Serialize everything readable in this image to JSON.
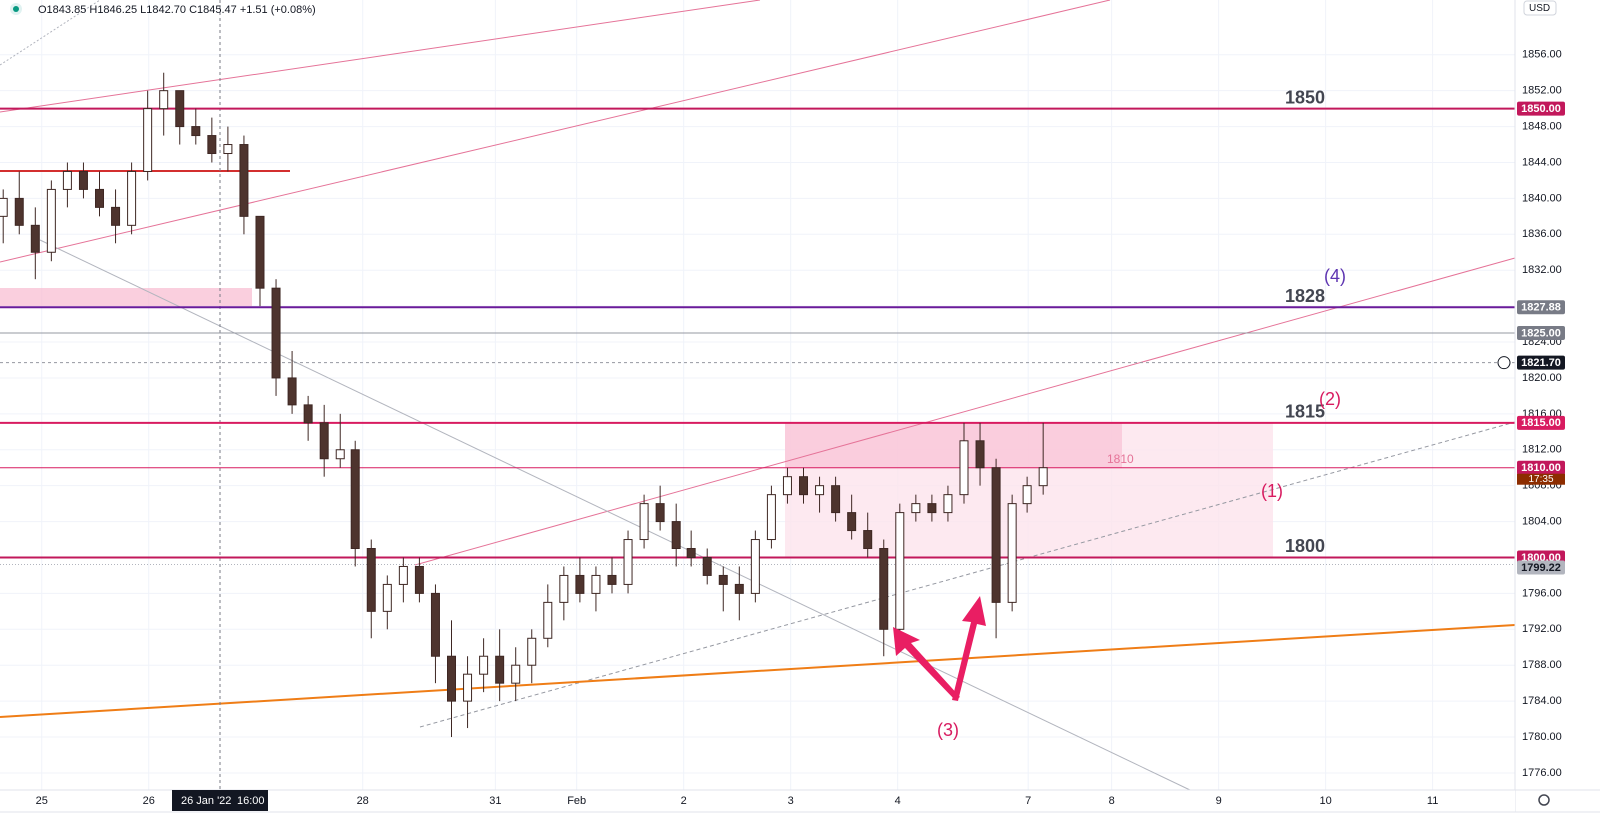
{
  "chart_data": {
    "type": "candlestick",
    "header": "O1843.85 H1846.25 L1842.70 C1845.47 +1.51 (+0.08%)",
    "currency": "USD",
    "crosshair_date": "26 Jan '22",
    "crosshair_time": "16:00",
    "up_color": "#ffffff",
    "down_color": "#4e342e",
    "ylim": [
      1774.1,
      1862.1
    ],
    "yticks": [
      {
        "value": 1776,
        "label": "1776.00"
      },
      {
        "value": 1780,
        "label": "1780.00"
      },
      {
        "value": 1784,
        "label": "1784.00"
      },
      {
        "value": 1788,
        "label": "1788.00"
      },
      {
        "value": 1792,
        "label": "1792.00"
      },
      {
        "value": 1796,
        "label": "1796.00"
      },
      {
        "value": 1800,
        "label": "1800.00"
      },
      {
        "value": 1804,
        "label": "1804.00"
      },
      {
        "value": 1808,
        "label": "1808.00"
      },
      {
        "value": 1812,
        "label": "1812.00"
      },
      {
        "value": 1816,
        "label": "1816.00"
      },
      {
        "value": 1820,
        "label": "1820.00"
      },
      {
        "value": 1824,
        "label": "1824.00"
      },
      {
        "value": 1828,
        "label": "1828.00"
      },
      {
        "value": 1832,
        "label": "1832.00"
      },
      {
        "value": 1836,
        "label": "1836.00"
      },
      {
        "value": 1840,
        "label": "1840.00"
      },
      {
        "value": 1844,
        "label": "1844.00"
      },
      {
        "value": 1848,
        "label": "1848.00"
      },
      {
        "value": 1852,
        "label": "1852.00"
      },
      {
        "value": 1856,
        "label": "1856.00"
      }
    ],
    "xlim": [
      -0.39,
      13.77
    ],
    "xticks": [
      {
        "value": 0,
        "label": "25"
      },
      {
        "value": 1,
        "label": "26"
      },
      {
        "value": 3,
        "label": "28"
      },
      {
        "value": 4.24,
        "label": "31"
      },
      {
        "value": 5,
        "label": "Feb"
      },
      {
        "value": 6,
        "label": "2"
      },
      {
        "value": 7,
        "label": "3"
      },
      {
        "value": 8,
        "label": "4"
      },
      {
        "value": 9.22,
        "label": "7"
      },
      {
        "value": 10,
        "label": "8"
      },
      {
        "value": 11,
        "label": "9"
      },
      {
        "value": 12,
        "label": "10"
      },
      {
        "value": 13,
        "label": "11"
      }
    ],
    "x": [
      -0.36,
      -0.21,
      -0.06,
      0.09,
      0.24,
      0.39,
      0.54,
      0.69,
      0.84,
      0.99,
      1.14,
      1.29,
      1.44,
      1.59,
      1.74,
      1.89,
      2.04,
      2.19,
      2.34,
      2.49,
      2.64,
      2.79,
      2.93,
      3.08,
      3.23,
      3.38,
      3.53,
      3.68,
      3.83,
      3.98,
      4.13,
      4.28,
      4.43,
      4.58,
      4.73,
      4.88,
      5.03,
      5.18,
      5.33,
      5.48,
      5.63,
      5.78,
      5.93,
      6.07,
      6.22,
      6.37,
      6.52,
      6.67,
      6.82,
      6.97,
      7.12,
      7.27,
      7.42,
      7.57,
      7.72,
      7.87,
      8.02,
      8.17,
      8.32,
      8.47,
      8.62,
      8.77,
      8.92,
      9.07,
      9.21,
      9.36
    ],
    "open": [
      1838,
      1840,
      1837,
      1834,
      1841,
      1843,
      1841,
      1839,
      1837,
      1843,
      1850,
      1852,
      1848,
      1847,
      1845,
      1846,
      1838,
      1830,
      1820,
      1817,
      1815,
      1811,
      1812,
      1801,
      1794,
      1797,
      1799,
      1796,
      1789,
      1784,
      1787,
      1789,
      1786,
      1788,
      1791,
      1795,
      1798,
      1796,
      1798,
      1797,
      1802,
      1806,
      1804,
      1801,
      1800,
      1798,
      1797,
      1796,
      1802,
      1807,
      1809,
      1807,
      1808,
      1805,
      1803,
      1801,
      1792,
      1805,
      1806,
      1805,
      1807,
      1813,
      1810,
      1795,
      1806,
      1808
    ],
    "high": [
      1841,
      1843,
      1839,
      1842,
      1844,
      1844,
      1843,
      1841,
      1844,
      1852,
      1854,
      1852,
      1850,
      1849,
      1848,
      1847,
      1838,
      1831,
      1823,
      1818,
      1817,
      1816,
      1813,
      1802,
      1798,
      1800,
      1800,
      1797,
      1793,
      1789,
      1791,
      1792,
      1790,
      1792,
      1797,
      1799,
      1800,
      1799,
      1800,
      1803,
      1807,
      1808,
      1806,
      1803,
      1801,
      1799,
      1799,
      1803,
      1808,
      1810,
      1810,
      1809,
      1809,
      1807,
      1805,
      1802,
      1806,
      1807,
      1807,
      1808,
      1815,
      1815,
      1811,
      1807,
      1809,
      1815
    ],
    "low": [
      1835,
      1836,
      1831,
      1833,
      1839,
      1840,
      1838,
      1835,
      1836,
      1842,
      1847,
      1846,
      1846,
      1844,
      1843,
      1836,
      1828,
      1818,
      1816,
      1813,
      1809,
      1810,
      1799,
      1791,
      1792,
      1795,
      1795,
      1786,
      1780,
      1781,
      1785,
      1784,
      1784,
      1786,
      1790,
      1793,
      1795,
      1794,
      1796,
      1796,
      1801,
      1803,
      1799,
      1799,
      1797,
      1794,
      1793,
      1795,
      1801,
      1806,
      1806,
      1805,
      1804,
      1802,
      1800,
      1789,
      1791,
      1804,
      1804,
      1804,
      1806,
      1808,
      1791,
      1794,
      1805,
      1807
    ],
    "close": [
      1840,
      1837,
      1834,
      1841,
      1843,
      1841,
      1839,
      1837,
      1843,
      1850,
      1852,
      1848,
      1847,
      1845,
      1846,
      1838,
      1830,
      1820,
      1817,
      1815,
      1811,
      1812,
      1801,
      1794,
      1797,
      1799,
      1796,
      1789,
      1784,
      1787,
      1789,
      1786,
      1788,
      1791,
      1795,
      1798,
      1796,
      1798,
      1797,
      1802,
      1806,
      1804,
      1801,
      1800,
      1798,
      1797,
      1796,
      1802,
      1807,
      1809,
      1807,
      1808,
      1805,
      1803,
      1801,
      1792,
      1805,
      1806,
      1805,
      1807,
      1813,
      1810,
      1795,
      1806,
      1808,
      1810
    ],
    "levels": [
      {
        "price": 1850,
        "tag": "1850.00",
        "label": "1850",
        "color": "#c2185b",
        "tag_color": "#c2185b"
      },
      {
        "price": 1827.88,
        "tag": "1827.88",
        "label": "1828",
        "color": "#6a1b9a",
        "tag_color": "#787b86"
      },
      {
        "price": 1825,
        "tag": "1825.00",
        "color": "#9598a1",
        "tag_color": "#787b86"
      },
      {
        "price": 1815,
        "tag": "1815.00",
        "label": "1815",
        "color": "#d81b60",
        "tag_color": "#d81b60"
      },
      {
        "price": 1810,
        "tag": "1810.00",
        "label": "1810",
        "color": "#d81b60",
        "tag_color": "#c2185b"
      },
      {
        "price": 1800,
        "tag": "1800.00",
        "label": "1800",
        "color": "#c2185b",
        "tag_color": "#c2185b"
      }
    ],
    "last_price": {
      "price": 1821.7,
      "tag": "1821.70"
    },
    "countdown": "17:35",
    "prev_close": {
      "price": 1799.22,
      "tag": "1799.22"
    },
    "annotations": [
      "(4)",
      "(2)",
      "(1)",
      "(3)"
    ]
  }
}
